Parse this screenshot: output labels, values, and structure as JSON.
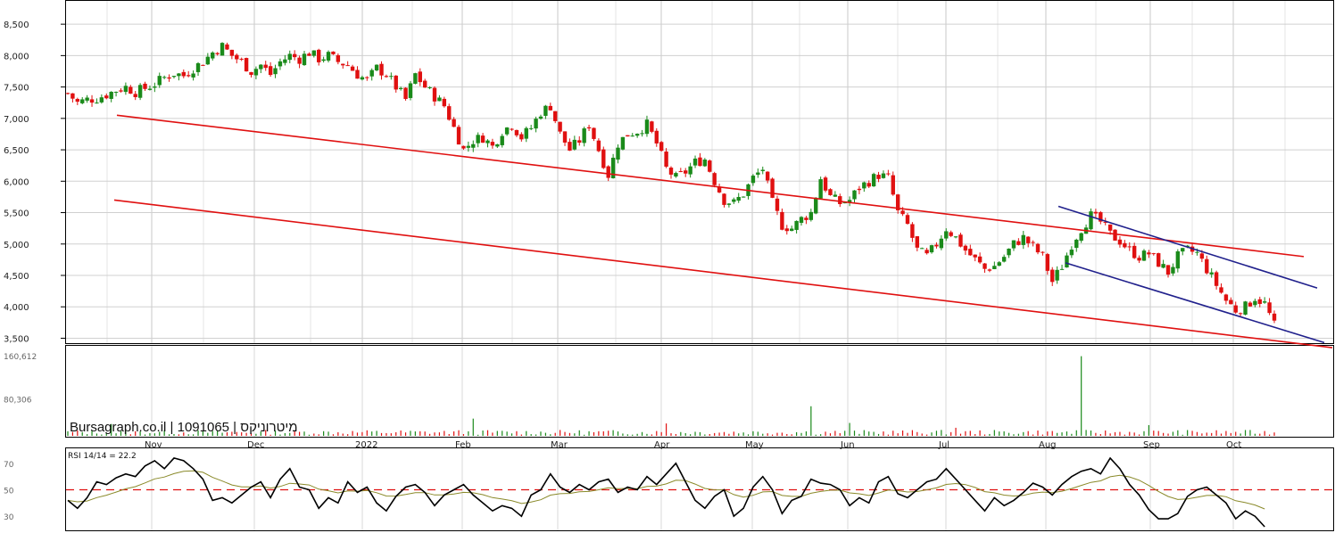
{
  "chart_data": [
    {
      "type": "candlestick",
      "watermark": "Bursagraph.co.il | 1091065 | מיטרוניקס",
      "y_ticks": [
        "8,500",
        "8,000",
        "7,500",
        "7,000",
        "6,500",
        "6,000",
        "5,500",
        "5,000",
        "4,500",
        "4,000",
        "3,500"
      ],
      "ylim": [
        3450,
        8800
      ],
      "grid": true,
      "months": [
        "Nov",
        "Dec",
        "2022",
        "Feb",
        "Mar",
        "Apr",
        "May",
        "Jun",
        "Jul",
        "Aug",
        "Sep",
        "Oct"
      ],
      "colors": {
        "up": "#1a8a1a",
        "down": "#e01010",
        "channel": "#e01010",
        "channel2": "#20208c"
      },
      "close_path": [
        [
          0,
          7400
        ],
        [
          2,
          7250
        ],
        [
          4,
          7300
        ],
        [
          6,
          7320
        ],
        [
          8,
          7380
        ],
        [
          10,
          7450
        ],
        [
          12,
          7500
        ],
        [
          14,
          7420
        ],
        [
          16,
          7480
        ],
        [
          18,
          7550
        ],
        [
          20,
          7650
        ],
        [
          22,
          7720
        ],
        [
          24,
          7680
        ],
        [
          26,
          7800
        ],
        [
          28,
          7900
        ],
        [
          30,
          8050
        ],
        [
          32,
          8150
        ],
        [
          34,
          8000
        ],
        [
          36,
          7900
        ],
        [
          38,
          7750
        ],
        [
          40,
          7850
        ],
        [
          42,
          7700
        ],
        [
          44,
          7900
        ],
        [
          46,
          8000
        ],
        [
          48,
          7950
        ],
        [
          50,
          8050
        ],
        [
          52,
          7950
        ],
        [
          54,
          8000
        ],
        [
          56,
          7900
        ],
        [
          58,
          7850
        ],
        [
          60,
          7700
        ],
        [
          62,
          7600
        ],
        [
          64,
          7800
        ],
        [
          66,
          7700
        ],
        [
          68,
          7500
        ],
        [
          70,
          7300
        ],
        [
          72,
          7700
        ],
        [
          74,
          7500
        ],
        [
          76,
          7350
        ],
        [
          78,
          7200
        ],
        [
          80,
          6850
        ],
        [
          82,
          6500
        ],
        [
          84,
          6650
        ],
        [
          86,
          6700
        ],
        [
          88,
          6550
        ],
        [
          90,
          6800
        ],
        [
          92,
          6900
        ],
        [
          94,
          6700
        ],
        [
          96,
          6850
        ],
        [
          98,
          7100
        ],
        [
          100,
          7200
        ],
        [
          102,
          6750
        ],
        [
          104,
          6500
        ],
        [
          106,
          6650
        ],
        [
          108,
          6900
        ],
        [
          110,
          6500
        ],
        [
          112,
          6100
        ],
        [
          114,
          6600
        ],
        [
          116,
          6750
        ],
        [
          118,
          6800
        ],
        [
          120,
          6900
        ],
        [
          122,
          6600
        ],
        [
          124,
          6200
        ],
        [
          126,
          6050
        ],
        [
          128,
          6150
        ],
        [
          130,
          6300
        ],
        [
          132,
          6350
        ],
        [
          134,
          6000
        ],
        [
          136,
          5700
        ],
        [
          138,
          5650
        ],
        [
          140,
          5800
        ],
        [
          142,
          6050
        ],
        [
          144,
          6200
        ],
        [
          146,
          5650
        ],
        [
          148,
          5300
        ],
        [
          150,
          5250
        ],
        [
          152,
          5400
        ],
        [
          154,
          5500
        ],
        [
          156,
          6050
        ],
        [
          158,
          5750
        ],
        [
          160,
          5650
        ],
        [
          162,
          5700
        ],
        [
          164,
          5900
        ],
        [
          166,
          6000
        ],
        [
          168,
          6100
        ],
        [
          170,
          6050
        ],
        [
          172,
          5500
        ],
        [
          174,
          5300
        ],
        [
          176,
          4900
        ],
        [
          178,
          4800
        ],
        [
          180,
          5000
        ],
        [
          182,
          5250
        ],
        [
          184,
          5100
        ],
        [
          186,
          4900
        ],
        [
          188,
          4750
        ],
        [
          190,
          4600
        ],
        [
          192,
          4650
        ],
        [
          194,
          4800
        ],
        [
          196,
          5000
        ],
        [
          198,
          5100
        ],
        [
          200,
          4950
        ],
        [
          202,
          4800
        ],
        [
          204,
          4400
        ],
        [
          206,
          4650
        ],
        [
          208,
          5000
        ],
        [
          210,
          5250
        ],
        [
          212,
          5450
        ],
        [
          214,
          5350
        ],
        [
          216,
          5150
        ],
        [
          218,
          5050
        ],
        [
          220,
          4900
        ],
        [
          222,
          4800
        ],
        [
          224,
          4850
        ],
        [
          226,
          4700
        ],
        [
          228,
          4550
        ],
        [
          230,
          4800
        ],
        [
          232,
          4900
        ],
        [
          234,
          4850
        ],
        [
          236,
          4600
        ],
        [
          238,
          4350
        ],
        [
          240,
          4100
        ],
        [
          242,
          3950
        ],
        [
          244,
          4000
        ],
        [
          246,
          4150
        ],
        [
          248,
          4050
        ],
        [
          250,
          3700
        ]
      ],
      "channel_upper": [
        [
          131,
          7050
        ],
        [
          1461,
          4800
        ]
      ],
      "channel_lower": [
        [
          128,
          5700
        ],
        [
          1493,
          3350
        ]
      ],
      "channel2_upper": [
        [
          1186,
          5600
        ],
        [
          1476,
          4300
        ]
      ],
      "channel2_lower": [
        [
          1194,
          4700
        ],
        [
          1484,
          3430
        ]
      ]
    },
    {
      "type": "bar",
      "name": "volume",
      "y_ticks": [
        "160,612",
        "80,306"
      ],
      "ylim": [
        0,
        160612
      ],
      "spikes": [
        [
          9,
          22000
        ],
        [
          84,
          32000
        ],
        [
          124,
          23000
        ],
        [
          154,
          55000
        ],
        [
          162,
          24000
        ],
        [
          184,
          15000
        ],
        [
          210,
          148000
        ],
        [
          224,
          20000
        ]
      ]
    },
    {
      "type": "line",
      "label": "RSI 14/14 = 22.2",
      "y_ticks": [
        "70",
        "50",
        "30"
      ],
      "ylim": [
        20,
        80
      ],
      "rsi": [
        [
          0,
          42
        ],
        [
          2,
          36
        ],
        [
          4,
          44
        ],
        [
          6,
          56
        ],
        [
          8,
          54
        ],
        [
          10,
          59
        ],
        [
          12,
          62
        ],
        [
          14,
          60
        ],
        [
          16,
          68
        ],
        [
          18,
          72
        ],
        [
          20,
          66
        ],
        [
          22,
          74
        ],
        [
          24,
          72
        ],
        [
          26,
          66
        ],
        [
          28,
          58
        ],
        [
          30,
          42
        ],
        [
          32,
          44
        ],
        [
          34,
          40
        ],
        [
          36,
          46
        ],
        [
          38,
          52
        ],
        [
          40,
          56
        ],
        [
          42,
          44
        ],
        [
          44,
          58
        ],
        [
          46,
          66
        ],
        [
          48,
          52
        ],
        [
          50,
          50
        ],
        [
          52,
          36
        ],
        [
          54,
          44
        ],
        [
          56,
          40
        ],
        [
          58,
          56
        ],
        [
          60,
          48
        ],
        [
          62,
          52
        ],
        [
          64,
          40
        ],
        [
          66,
          34
        ],
        [
          68,
          45
        ],
        [
          70,
          52
        ],
        [
          72,
          54
        ],
        [
          74,
          48
        ],
        [
          76,
          38
        ],
        [
          78,
          46
        ],
        [
          80,
          50
        ],
        [
          82,
          54
        ],
        [
          84,
          46
        ],
        [
          86,
          40
        ],
        [
          88,
          34
        ],
        [
          90,
          38
        ],
        [
          92,
          36
        ],
        [
          94,
          30
        ],
        [
          96,
          46
        ],
        [
          98,
          50
        ],
        [
          100,
          62
        ],
        [
          102,
          52
        ],
        [
          104,
          48
        ],
        [
          106,
          54
        ],
        [
          108,
          50
        ],
        [
          110,
          56
        ],
        [
          112,
          58
        ],
        [
          114,
          48
        ],
        [
          116,
          52
        ],
        [
          118,
          50
        ],
        [
          120,
          60
        ],
        [
          122,
          54
        ],
        [
          124,
          62
        ],
        [
          126,
          70
        ],
        [
          128,
          56
        ],
        [
          130,
          42
        ],
        [
          132,
          36
        ],
        [
          134,
          45
        ],
        [
          136,
          50
        ],
        [
          138,
          30
        ],
        [
          140,
          36
        ],
        [
          142,
          52
        ],
        [
          144,
          60
        ],
        [
          146,
          50
        ],
        [
          148,
          32
        ],
        [
          150,
          42
        ],
        [
          152,
          45
        ],
        [
          154,
          58
        ],
        [
          156,
          55
        ],
        [
          158,
          54
        ],
        [
          160,
          50
        ],
        [
          162,
          38
        ],
        [
          164,
          44
        ],
        [
          166,
          40
        ],
        [
          168,
          56
        ],
        [
          170,
          60
        ],
        [
          172,
          47
        ],
        [
          174,
          44
        ],
        [
          176,
          50
        ],
        [
          178,
          56
        ],
        [
          180,
          58
        ],
        [
          182,
          66
        ],
        [
          184,
          58
        ],
        [
          186,
          50
        ],
        [
          188,
          42
        ],
        [
          190,
          34
        ],
        [
          192,
          44
        ],
        [
          194,
          38
        ],
        [
          196,
          42
        ],
        [
          198,
          48
        ],
        [
          200,
          55
        ],
        [
          202,
          52
        ],
        [
          204,
          46
        ],
        [
          206,
          54
        ],
        [
          208,
          60
        ],
        [
          210,
          64
        ],
        [
          212,
          66
        ],
        [
          214,
          62
        ],
        [
          216,
          74
        ],
        [
          218,
          66
        ],
        [
          220,
          54
        ],
        [
          222,
          46
        ],
        [
          224,
          35
        ],
        [
          226,
          28
        ],
        [
          228,
          28
        ],
        [
          230,
          32
        ],
        [
          232,
          45
        ],
        [
          234,
          50
        ],
        [
          236,
          52
        ],
        [
          238,
          46
        ],
        [
          240,
          40
        ],
        [
          242,
          28
        ],
        [
          244,
          34
        ],
        [
          246,
          30
        ],
        [
          248,
          22
        ]
      ]
    }
  ]
}
